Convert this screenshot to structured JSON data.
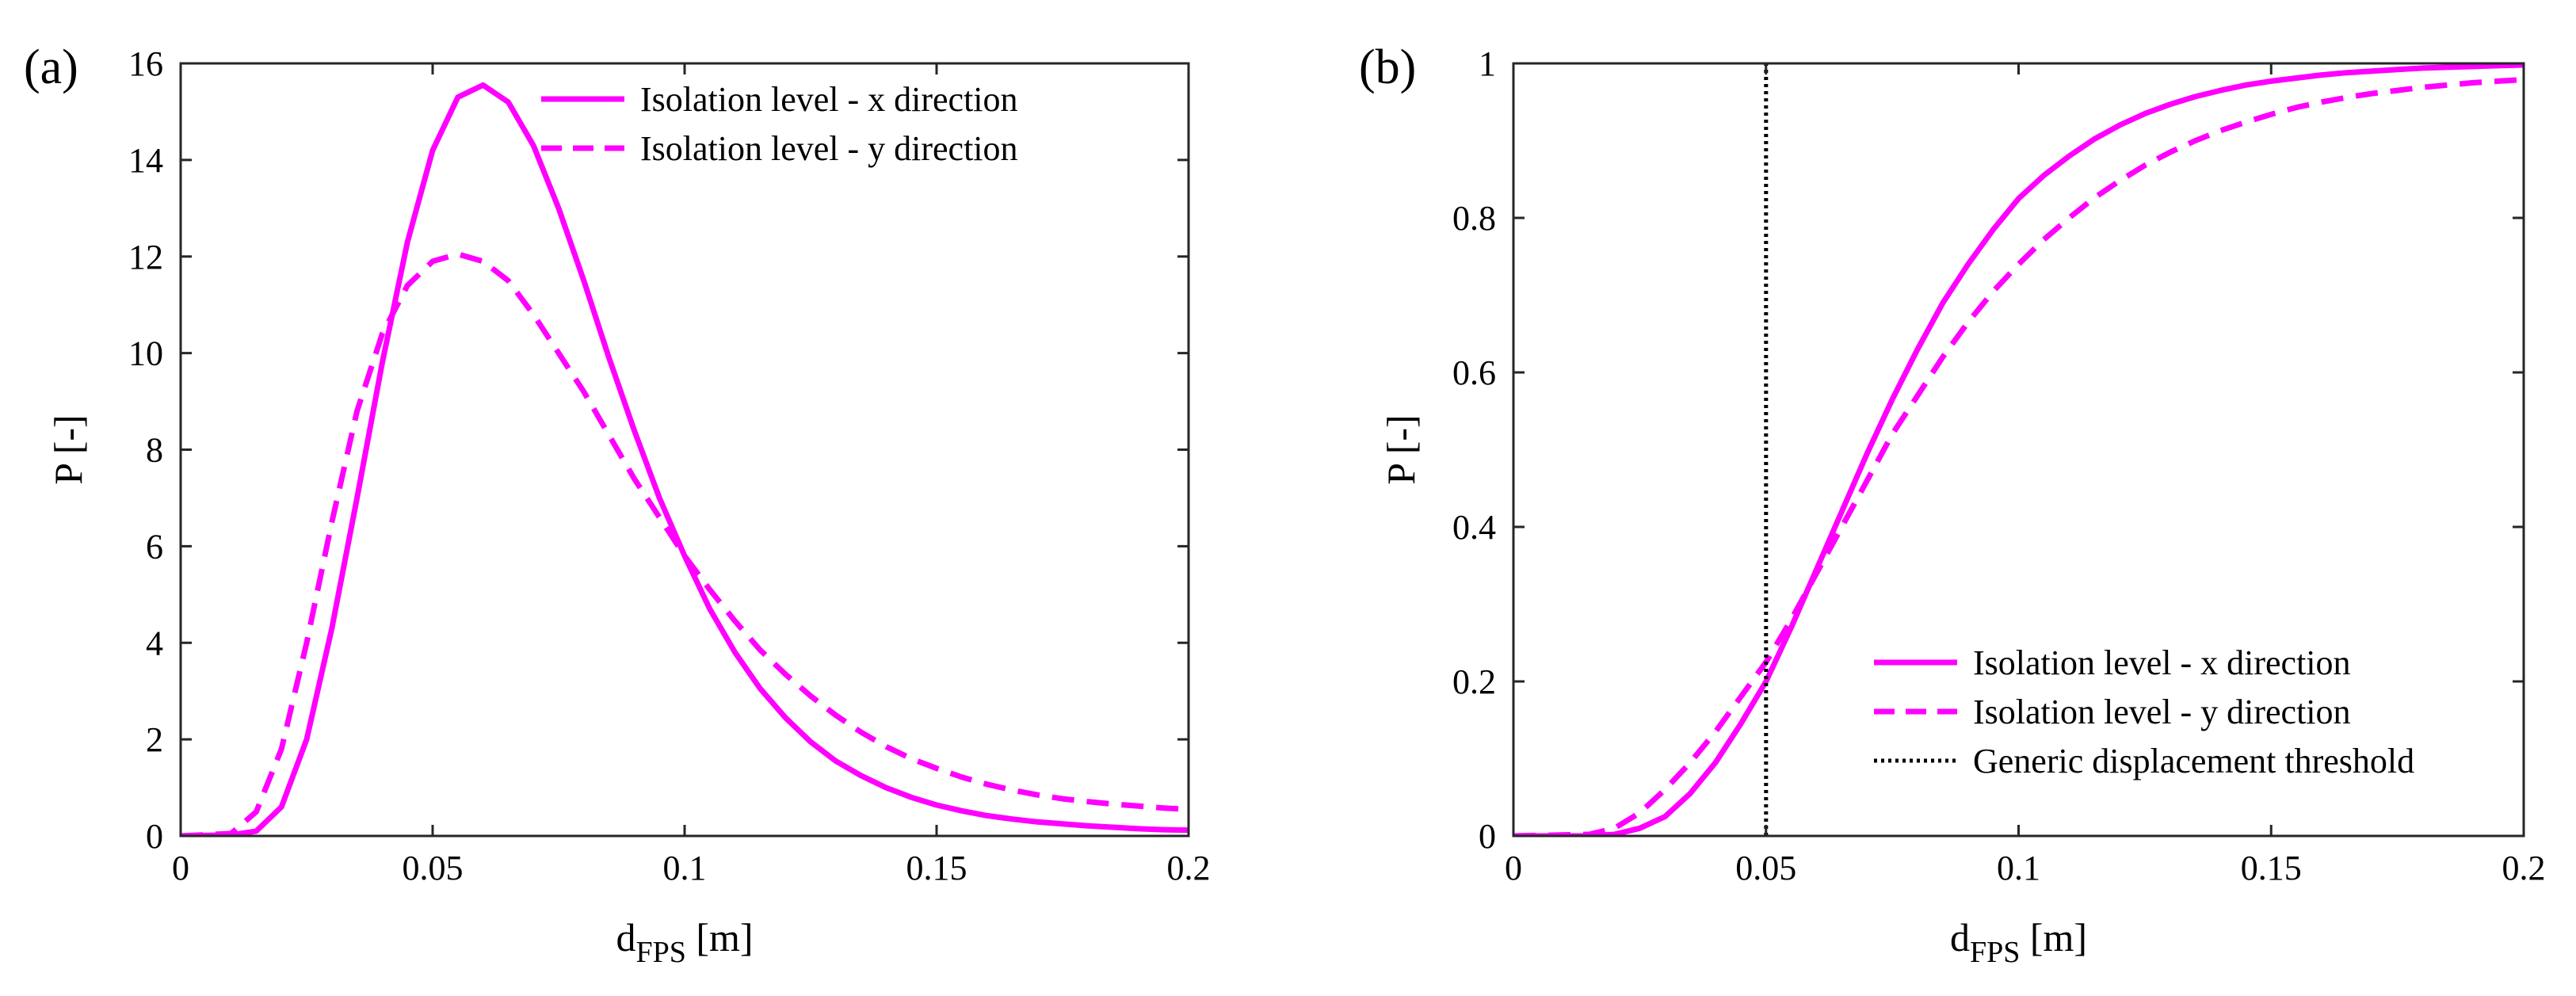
{
  "chart_data": [
    {
      "type": "line",
      "panel_label": "(a)",
      "xlabel": "d",
      "xlabel_sub": "FPS",
      "xlabel_unit": "[m]",
      "ylabel": "P [-]",
      "xlim": [
        0,
        0.2
      ],
      "ylim": [
        0,
        16
      ],
      "x_ticks": [
        0,
        0.05,
        0.1,
        0.15,
        0.2
      ],
      "x_tick_labels": [
        "0",
        "0.05",
        "0.1",
        "0.15",
        "0.2"
      ],
      "y_ticks": [
        0,
        2,
        4,
        6,
        8,
        10,
        12,
        14,
        16
      ],
      "y_tick_labels": [
        "0",
        "2",
        "4",
        "6",
        "8",
        "10",
        "12",
        "14",
        "16"
      ],
      "grid": false,
      "legend_position": "top-right",
      "series": [
        {
          "name": "Isolation level - x direction",
          "style": "solid",
          "color": "#ff00ff",
          "x": [
            0,
            0.01,
            0.015,
            0.02,
            0.025,
            0.03,
            0.035,
            0.04,
            0.045,
            0.05,
            0.055,
            0.06,
            0.065,
            0.07,
            0.075,
            0.08,
            0.085,
            0.09,
            0.095,
            0.1,
            0.105,
            0.11,
            0.115,
            0.12,
            0.125,
            0.13,
            0.135,
            0.14,
            0.145,
            0.15,
            0.155,
            0.16,
            0.165,
            0.17,
            0.175,
            0.18,
            0.185,
            0.19,
            0.195,
            0.2
          ],
          "y": [
            0,
            0.02,
            0.1,
            0.6,
            2.0,
            4.3,
            7.0,
            9.8,
            12.3,
            14.2,
            15.3,
            15.55,
            15.2,
            14.3,
            13.0,
            11.5,
            9.9,
            8.4,
            7.0,
            5.8,
            4.7,
            3.8,
            3.05,
            2.45,
            1.95,
            1.55,
            1.25,
            1.0,
            0.8,
            0.64,
            0.52,
            0.42,
            0.35,
            0.29,
            0.25,
            0.21,
            0.18,
            0.15,
            0.13,
            0.12
          ]
        },
        {
          "name": "Isolation level - y direction",
          "style": "dashed",
          "color": "#ff00ff",
          "x": [
            0,
            0.01,
            0.015,
            0.02,
            0.025,
            0.03,
            0.035,
            0.04,
            0.045,
            0.05,
            0.055,
            0.06,
            0.065,
            0.07,
            0.075,
            0.08,
            0.085,
            0.09,
            0.095,
            0.1,
            0.105,
            0.11,
            0.115,
            0.12,
            0.125,
            0.13,
            0.135,
            0.14,
            0.145,
            0.15,
            0.155,
            0.16,
            0.165,
            0.17,
            0.175,
            0.18,
            0.185,
            0.19,
            0.195,
            0.2
          ],
          "y": [
            0,
            0.05,
            0.5,
            1.8,
            4.0,
            6.5,
            8.8,
            10.4,
            11.4,
            11.9,
            12.05,
            11.9,
            11.5,
            10.8,
            10.0,
            9.2,
            8.3,
            7.4,
            6.6,
            5.8,
            5.1,
            4.45,
            3.85,
            3.35,
            2.9,
            2.5,
            2.15,
            1.85,
            1.6,
            1.4,
            1.22,
            1.07,
            0.95,
            0.85,
            0.77,
            0.71,
            0.66,
            0.62,
            0.58,
            0.55
          ]
        }
      ]
    },
    {
      "type": "line",
      "panel_label": "(b)",
      "xlabel": "d",
      "xlabel_sub": "FPS",
      "xlabel_unit": "[m]",
      "ylabel": "P [-]",
      "xlim": [
        0,
        0.2
      ],
      "ylim": [
        0,
        1
      ],
      "x_ticks": [
        0,
        0.05,
        0.1,
        0.15,
        0.2
      ],
      "x_tick_labels": [
        "0",
        "0.05",
        "0.1",
        "0.15",
        "0.2"
      ],
      "y_ticks": [
        0,
        0.2,
        0.4,
        0.6,
        0.8,
        1
      ],
      "y_tick_labels": [
        "0",
        "0.2",
        "0.4",
        "0.6",
        "0.8",
        "1"
      ],
      "grid": false,
      "legend_position": "bottom-right",
      "series": [
        {
          "name": "Isolation level - x direction",
          "style": "solid",
          "color": "#ff00ff",
          "x": [
            0,
            0.015,
            0.02,
            0.025,
            0.03,
            0.035,
            0.04,
            0.045,
            0.05,
            0.055,
            0.06,
            0.065,
            0.07,
            0.075,
            0.08,
            0.085,
            0.09,
            0.095,
            0.1,
            0.105,
            0.11,
            0.115,
            0.12,
            0.125,
            0.13,
            0.135,
            0.14,
            0.145,
            0.15,
            0.155,
            0.16,
            0.165,
            0.17,
            0.175,
            0.18,
            0.185,
            0.19,
            0.195,
            0.2
          ],
          "y": [
            0,
            0.0,
            0.002,
            0.01,
            0.025,
            0.055,
            0.095,
            0.145,
            0.2,
            0.27,
            0.345,
            0.42,
            0.495,
            0.565,
            0.63,
            0.69,
            0.74,
            0.785,
            0.825,
            0.855,
            0.88,
            0.902,
            0.92,
            0.935,
            0.947,
            0.957,
            0.965,
            0.972,
            0.977,
            0.981,
            0.985,
            0.988,
            0.99,
            0.992,
            0.994,
            0.995,
            0.996,
            0.997,
            0.998
          ]
        },
        {
          "name": "Isolation level - y direction",
          "style": "dashed",
          "color": "#ff00ff",
          "x": [
            0,
            0.015,
            0.02,
            0.025,
            0.03,
            0.035,
            0.04,
            0.045,
            0.05,
            0.055,
            0.06,
            0.065,
            0.07,
            0.075,
            0.08,
            0.085,
            0.09,
            0.095,
            0.1,
            0.105,
            0.11,
            0.115,
            0.12,
            0.125,
            0.13,
            0.135,
            0.14,
            0.145,
            0.15,
            0.155,
            0.16,
            0.165,
            0.17,
            0.175,
            0.18,
            0.185,
            0.19,
            0.195,
            0.2
          ],
          "y": [
            0,
            0.002,
            0.01,
            0.03,
            0.06,
            0.095,
            0.135,
            0.18,
            0.225,
            0.28,
            0.34,
            0.4,
            0.46,
            0.52,
            0.57,
            0.62,
            0.665,
            0.705,
            0.74,
            0.772,
            0.8,
            0.826,
            0.848,
            0.868,
            0.885,
            0.9,
            0.913,
            0.924,
            0.934,
            0.943,
            0.95,
            0.956,
            0.961,
            0.965,
            0.969,
            0.972,
            0.975,
            0.977,
            0.979
          ]
        },
        {
          "name": "Generic displacement threshold",
          "style": "dotted",
          "color": "#000000",
          "x": [
            0.05,
            0.05
          ],
          "y": [
            0,
            1
          ]
        }
      ]
    }
  ]
}
